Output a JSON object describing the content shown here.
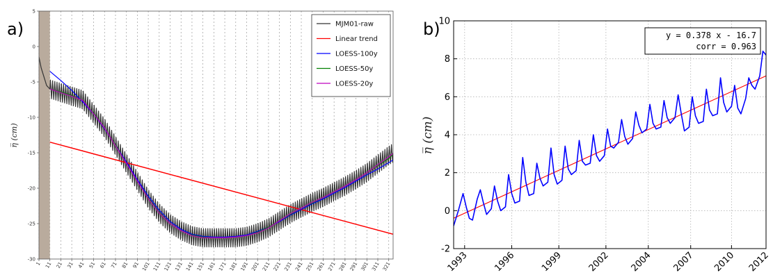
{
  "panel_labels": {
    "a": "a)",
    "b": "b)"
  },
  "chart_data": [
    {
      "type": "line",
      "ylabel": "η̅ (cm)",
      "ylim": [
        -30,
        5
      ],
      "xlim": [
        1,
        325
      ],
      "y_ticks": [
        5,
        0,
        -5,
        -10,
        -15,
        -20,
        -25,
        -30
      ],
      "x_ticks": [
        1,
        11,
        21,
        31,
        41,
        51,
        61,
        71,
        81,
        91,
        101,
        111,
        121,
        131,
        141,
        151,
        161,
        171,
        181,
        191,
        201,
        211,
        221,
        231,
        241,
        251,
        261,
        271,
        281,
        291,
        301,
        311,
        321
      ],
      "grid": "vertical dotted",
      "shaded_region": {
        "x": [
          1,
          11
        ],
        "color": "#b9ab9d"
      },
      "legend_position": "top-right",
      "colors": {
        "raw": "#333333",
        "linear": "#ff0000",
        "loess100": "#0000ff",
        "loess50": "#008000",
        "loess20": "#bf00bf"
      },
      "series": [
        {
          "name": "MJM01-raw",
          "x": [
            1,
            3,
            5,
            8,
            11,
            21,
            31,
            41,
            51,
            61,
            71,
            81,
            91,
            101,
            111,
            121,
            131,
            141,
            151,
            161,
            171,
            181,
            191,
            201,
            211,
            221,
            231,
            241,
            251,
            261,
            271,
            281,
            291,
            301,
            311,
            321,
            325
          ],
          "y": [
            -1.5,
            -3.0,
            -4.0,
            -5.5,
            -6.0,
            -6.5,
            -7.0,
            -7.5,
            -9.5,
            -11.5,
            -14.0,
            -16.5,
            -19.0,
            -21.5,
            -23.5,
            -25.0,
            -26.0,
            -26.7,
            -27.0,
            -27.0,
            -27.0,
            -27.0,
            -26.8,
            -26.3,
            -25.6,
            -24.6,
            -23.6,
            -22.8,
            -22.0,
            -21.3,
            -20.5,
            -19.7,
            -18.8,
            -17.8,
            -16.6,
            -15.4,
            -15.0
          ],
          "amplitude": 1.3
        },
        {
          "name": "Linear trend",
          "x": [
            11,
            325
          ],
          "y": [
            -13.5,
            -26.5
          ]
        },
        {
          "name": "LOESS-100y",
          "x": [
            11,
            21,
            31,
            41,
            51,
            61,
            71,
            81,
            91,
            101,
            111,
            121,
            131,
            141,
            151,
            161,
            171,
            181,
            191,
            201,
            211,
            221,
            231,
            241,
            251,
            261,
            271,
            281,
            291,
            301,
            311,
            321,
            325
          ],
          "y": [
            -3.5,
            -4.8,
            -6.2,
            -7.8,
            -9.5,
            -11.6,
            -13.9,
            -16.3,
            -18.8,
            -21.1,
            -23.1,
            -24.7,
            -25.8,
            -26.5,
            -26.8,
            -26.9,
            -26.9,
            -26.8,
            -26.6,
            -26.1,
            -25.5,
            -24.7,
            -23.8,
            -23.0,
            -22.2,
            -21.5,
            -20.7,
            -19.9,
            -19.0,
            -18.1,
            -17.3,
            -16.4,
            -16.0
          ]
        },
        {
          "name": "LOESS-50y",
          "x": [
            11,
            21,
            31,
            41,
            51,
            61,
            71,
            81,
            91,
            101,
            111,
            121,
            131,
            141,
            151,
            161,
            171,
            181,
            191,
            201,
            211,
            221,
            231,
            241,
            251,
            261,
            271,
            281,
            291,
            301,
            311,
            321,
            325
          ],
          "y": [
            -6.0,
            -6.4,
            -6.9,
            -7.6,
            -9.4,
            -11.5,
            -13.9,
            -16.5,
            -19.0,
            -21.4,
            -23.4,
            -25.0,
            -26.0,
            -26.6,
            -26.9,
            -27.0,
            -27.0,
            -26.9,
            -26.7,
            -26.2,
            -25.5,
            -24.6,
            -23.7,
            -22.8,
            -22.1,
            -21.3,
            -20.5,
            -19.7,
            -18.8,
            -17.8,
            -16.8,
            -15.8,
            -15.2
          ]
        },
        {
          "name": "LOESS-20y",
          "x": [
            11,
            21,
            31,
            41,
            51,
            61,
            71,
            81,
            91,
            101,
            111,
            121,
            131,
            141,
            151,
            161,
            171,
            181,
            191,
            201,
            211,
            221,
            231,
            241,
            251,
            261,
            271,
            281,
            291,
            301,
            311,
            321,
            325
          ],
          "y": [
            -6.0,
            -6.5,
            -7.0,
            -7.6,
            -9.5,
            -11.5,
            -14.0,
            -16.5,
            -19.0,
            -21.5,
            -23.5,
            -25.0,
            -26.0,
            -26.7,
            -27.0,
            -27.0,
            -27.0,
            -26.9,
            -26.7,
            -26.3,
            -25.6,
            -24.6,
            -23.6,
            -22.8,
            -22.0,
            -21.3,
            -20.5,
            -19.7,
            -18.8,
            -17.8,
            -16.7,
            -15.6,
            -15.1
          ]
        }
      ]
    },
    {
      "type": "line",
      "ylabel": "η̅ (cm)",
      "ylim": [
        -2,
        10
      ],
      "xlim": [
        1992.3,
        2012.2
      ],
      "y_ticks": [
        -2,
        0,
        2,
        4,
        6,
        8,
        10
      ],
      "x_ticks": [
        1993,
        1996,
        1999,
        2002,
        2004,
        2007,
        2010,
        2012
      ],
      "x_tick_positions": [
        1993.0,
        1996.0,
        1999.0,
        2002.0,
        2004.7,
        2007.4,
        2010.0,
        2012.2
      ],
      "grid": "dotted",
      "colors": {
        "observed": "#0000ff",
        "trend": "#ff0000"
      },
      "annotation": {
        "line1": "y = 0.378 x - 16.7",
        "line2": "corr = 0.963"
      },
      "series": [
        {
          "name": "",
          "x": [
            1992.3,
            1992.6,
            1992.9,
            1993.1,
            1993.3,
            1993.5,
            1993.8,
            1994.0,
            1994.2,
            1994.4,
            1994.7,
            1994.9,
            1995.1,
            1995.3,
            1995.6,
            1995.8,
            1996.0,
            1996.2,
            1996.5,
            1996.7,
            1996.9,
            1997.1,
            1997.4,
            1997.6,
            1997.8,
            1998.0,
            1998.3,
            1998.5,
            1998.7,
            1998.9,
            1999.2,
            1999.4,
            1999.6,
            1999.8,
            2000.1,
            2000.3,
            2000.5,
            2000.7,
            2001.0,
            2001.2,
            2001.4,
            2001.6,
            2001.9,
            2002.1,
            2002.3,
            2002.5,
            2002.8,
            2003.0,
            2003.2,
            2003.4,
            2003.7,
            2003.9,
            2004.1,
            2004.3,
            2004.6,
            2004.8,
            2005.0,
            2005.2,
            2005.5,
            2005.7,
            2005.9,
            2006.1,
            2006.4,
            2006.6,
            2006.8,
            2007.0,
            2007.3,
            2007.5,
            2007.7,
            2007.9,
            2008.2,
            2008.4,
            2008.6,
            2008.8,
            2009.1,
            2009.3,
            2009.5,
            2009.7,
            2010.0,
            2010.2,
            2010.4,
            2010.6,
            2010.9,
            2011.1,
            2011.3,
            2011.5,
            2011.8,
            2012.0,
            2012.2
          ],
          "y": [
            -0.8,
            0.0,
            0.9,
            0.2,
            -0.4,
            -0.5,
            0.6,
            1.1,
            0.4,
            -0.2,
            0.1,
            1.3,
            0.5,
            0.0,
            0.2,
            1.9,
            0.9,
            0.4,
            0.5,
            2.8,
            1.5,
            0.8,
            0.9,
            2.5,
            1.7,
            1.3,
            1.5,
            3.3,
            1.9,
            1.4,
            1.6,
            3.4,
            2.2,
            1.9,
            2.1,
            3.7,
            2.6,
            2.4,
            2.5,
            4.0,
            2.9,
            2.6,
            2.9,
            4.3,
            3.4,
            3.3,
            3.6,
            4.8,
            3.9,
            3.5,
            3.8,
            5.2,
            4.5,
            4.1,
            4.3,
            5.6,
            4.6,
            4.3,
            4.4,
            5.8,
            4.9,
            4.6,
            4.9,
            6.1,
            5.1,
            4.2,
            4.4,
            6.0,
            5.0,
            4.6,
            4.7,
            6.4,
            5.3,
            5.0,
            5.1,
            7.0,
            5.7,
            5.2,
            5.5,
            6.6,
            5.4,
            5.1,
            5.9,
            7.0,
            6.6,
            6.4,
            7.1,
            8.4,
            8.2
          ]
        },
        {
          "name": "",
          "x": [
            1992.3,
            2012.2
          ],
          "y": [
            -0.4,
            7.1
          ]
        }
      ]
    }
  ]
}
